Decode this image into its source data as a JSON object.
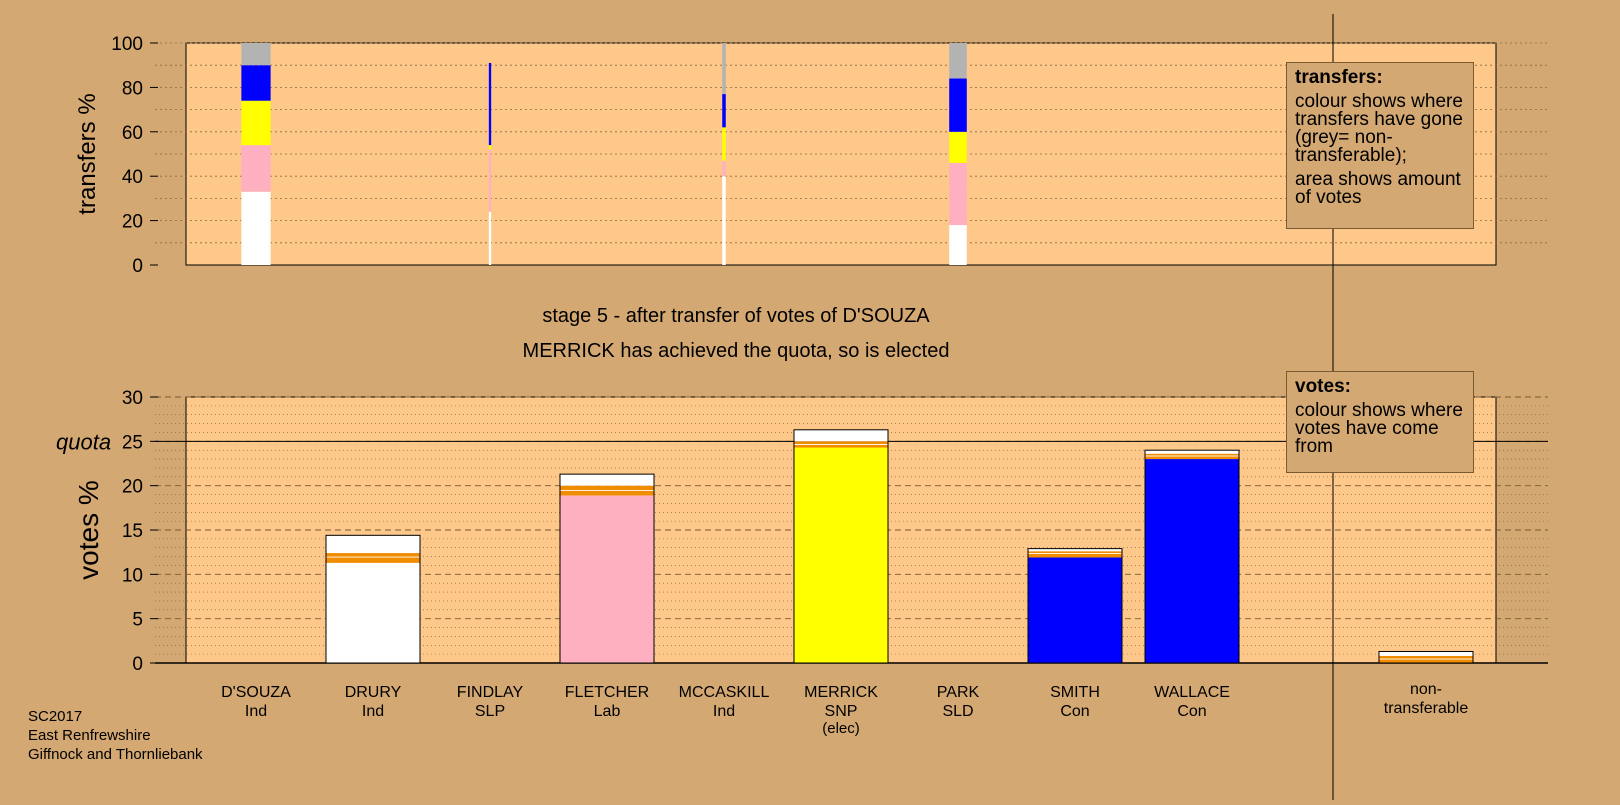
{
  "title_stage": "stage 5 - after transfer of votes of D'SOUZA",
  "subtitle": "MERRICK has achieved the quota, so is elected",
  "footer": [
    "SC2017",
    "East Renfrewshire",
    "Giffnock and Thornliebank"
  ],
  "legend_transfers": {
    "title": "transfers:",
    "p1": "colour shows where transfers have gone (grey= non-transferable);",
    "p2": "area shows amount of votes"
  },
  "legend_votes": {
    "title": "votes:",
    "p1": "colour shows where votes have come from"
  },
  "colors": {
    "background": "#d4a872",
    "plot_bg": "#fdc88a",
    "Ind": "#ffffff",
    "Lab": "#ffb0c0",
    "SNP": "#ffff00",
    "Con": "#0000ff",
    "non_transferable": "#b3b3b3",
    "transfer_stripe": "#f08c00",
    "quota_line": "#000000"
  },
  "chart_data": [
    {
      "type": "bar",
      "name": "transfers",
      "ylabel": "transfers %",
      "ylim": [
        0,
        100
      ],
      "yticks": [
        0,
        20,
        40,
        60,
        80,
        100
      ],
      "grid": true,
      "candidates": [
        "D'SOUZA",
        "DRURY",
        "FINDLAY",
        "FLETCHER",
        "MCCASKILL",
        "MERRICK",
        "PARK",
        "SMITH",
        "WALLACE"
      ],
      "bars": [
        {
          "candidate": "D'SOUZA",
          "width_pct": 2.5,
          "segments": [
            {
              "party": "Ind",
              "from": 0,
              "to": 33
            },
            {
              "party": "Lab",
              "from": 33,
              "to": 54
            },
            {
              "party": "SNP",
              "from": 54,
              "to": 74
            },
            {
              "party": "Con",
              "from": 74,
              "to": 90
            },
            {
              "party": "non_transferable",
              "from": 90,
              "to": 100
            }
          ]
        },
        {
          "candidate": "FINDLAY",
          "width_pct": 0.2,
          "segments": [
            {
              "party": "Ind",
              "from": 0,
              "to": 24
            },
            {
              "party": "Lab",
              "from": 24,
              "to": 52
            },
            {
              "party": "SNP",
              "from": 52,
              "to": 54
            },
            {
              "party": "Con",
              "from": 54,
              "to": 91
            }
          ]
        },
        {
          "candidate": "MCCASKILL",
          "width_pct": 0.3,
          "segments": [
            {
              "party": "Ind",
              "from": 0,
              "to": 40
            },
            {
              "party": "Lab",
              "from": 40,
              "to": 47
            },
            {
              "party": "SNP",
              "from": 47,
              "to": 62
            },
            {
              "party": "Con",
              "from": 62,
              "to": 77
            },
            {
              "party": "non_transferable",
              "from": 77,
              "to": 100
            }
          ]
        },
        {
          "candidate": "PARK",
          "width_pct": 1.5,
          "segments": [
            {
              "party": "Ind",
              "from": 0,
              "to": 18
            },
            {
              "party": "Lab",
              "from": 18,
              "to": 46
            },
            {
              "party": "SNP",
              "from": 46,
              "to": 60
            },
            {
              "party": "Con",
              "from": 60,
              "to": 84
            },
            {
              "party": "non_transferable",
              "from": 84,
              "to": 100
            }
          ]
        }
      ]
    },
    {
      "type": "bar",
      "name": "votes",
      "ylabel": "votes %",
      "ylim": [
        0,
        30
      ],
      "yticks": [
        0,
        5,
        10,
        15,
        20,
        25,
        30
      ],
      "quota": 25,
      "quota_label": "quota",
      "grid": true,
      "categories": [
        {
          "name": "D'SOUZA",
          "party": "Ind",
          "extra": ""
        },
        {
          "name": "DRURY",
          "party": "Ind",
          "extra": ""
        },
        {
          "name": "FINDLAY",
          "party": "SLP",
          "extra": ""
        },
        {
          "name": "FLETCHER",
          "party": "Lab",
          "extra": ""
        },
        {
          "name": "MCCASKILL",
          "party": "Ind",
          "extra": ""
        },
        {
          "name": "MERRICK",
          "party": "SNP",
          "extra": "(elec)"
        },
        {
          "name": "PARK",
          "party": "SLD",
          "extra": ""
        },
        {
          "name": "SMITH",
          "party": "Con",
          "extra": ""
        },
        {
          "name": "WALLACE",
          "party": "Con",
          "extra": ""
        }
      ],
      "nontransferable_label": [
        "non-",
        "transferable"
      ],
      "bars": [
        {
          "candidate": "DRURY",
          "segments": [
            {
              "party": "Ind",
              "from": 0,
              "to": 11.3
            },
            {
              "party": "transfer_stripe",
              "from": 11.3,
              "to": 11.9
            },
            {
              "party": "Ind",
              "from": 11.9,
              "to": 12.0
            },
            {
              "party": "transfer_stripe",
              "from": 12.0,
              "to": 12.4
            },
            {
              "party": "Ind",
              "from": 12.4,
              "to": 14.4
            }
          ]
        },
        {
          "candidate": "FLETCHER",
          "segments": [
            {
              "party": "Lab",
              "from": 0,
              "to": 18.9
            },
            {
              "party": "transfer_stripe",
              "from": 18.9,
              "to": 19.4
            },
            {
              "party": "Ind",
              "from": 19.4,
              "to": 19.5
            },
            {
              "party": "transfer_stripe",
              "from": 19.5,
              "to": 20.0
            },
            {
              "party": "Ind",
              "from": 20.0,
              "to": 21.3
            }
          ]
        },
        {
          "candidate": "MERRICK",
          "segments": [
            {
              "party": "SNP",
              "from": 0,
              "to": 24.3
            },
            {
              "party": "transfer_stripe",
              "from": 24.3,
              "to": 24.6
            },
            {
              "party": "Ind",
              "from": 24.6,
              "to": 24.7
            },
            {
              "party": "transfer_stripe",
              "from": 24.7,
              "to": 25.0
            },
            {
              "party": "Ind",
              "from": 25.0,
              "to": 26.3
            }
          ]
        },
        {
          "candidate": "SMITH",
          "segments": [
            {
              "party": "Con",
              "from": 0,
              "to": 11.9
            },
            {
              "party": "transfer_stripe",
              "from": 11.9,
              "to": 12.3
            },
            {
              "party": "Ind",
              "from": 12.3,
              "to": 12.4
            },
            {
              "party": "transfer_stripe",
              "from": 12.4,
              "to": 12.6
            },
            {
              "party": "Ind",
              "from": 12.6,
              "to": 12.9
            }
          ]
        },
        {
          "candidate": "WALLACE",
          "segments": [
            {
              "party": "Con",
              "from": 0,
              "to": 23.0
            },
            {
              "party": "transfer_stripe",
              "from": 23.0,
              "to": 23.3
            },
            {
              "party": "Ind",
              "from": 23.3,
              "to": 23.4
            },
            {
              "party": "transfer_stripe",
              "from": 23.4,
              "to": 23.6
            },
            {
              "party": "Ind",
              "from": 23.6,
              "to": 24.0
            }
          ]
        },
        {
          "candidate": "non-transferable",
          "segments": [
            {
              "party": "transfer_stripe",
              "from": 0,
              "to": 0.4
            },
            {
              "party": "Ind",
              "from": 0.4,
              "to": 0.5
            },
            {
              "party": "transfer_stripe",
              "from": 0.5,
              "to": 0.8
            },
            {
              "party": "Ind",
              "from": 0.8,
              "to": 1.3
            }
          ]
        }
      ]
    }
  ]
}
